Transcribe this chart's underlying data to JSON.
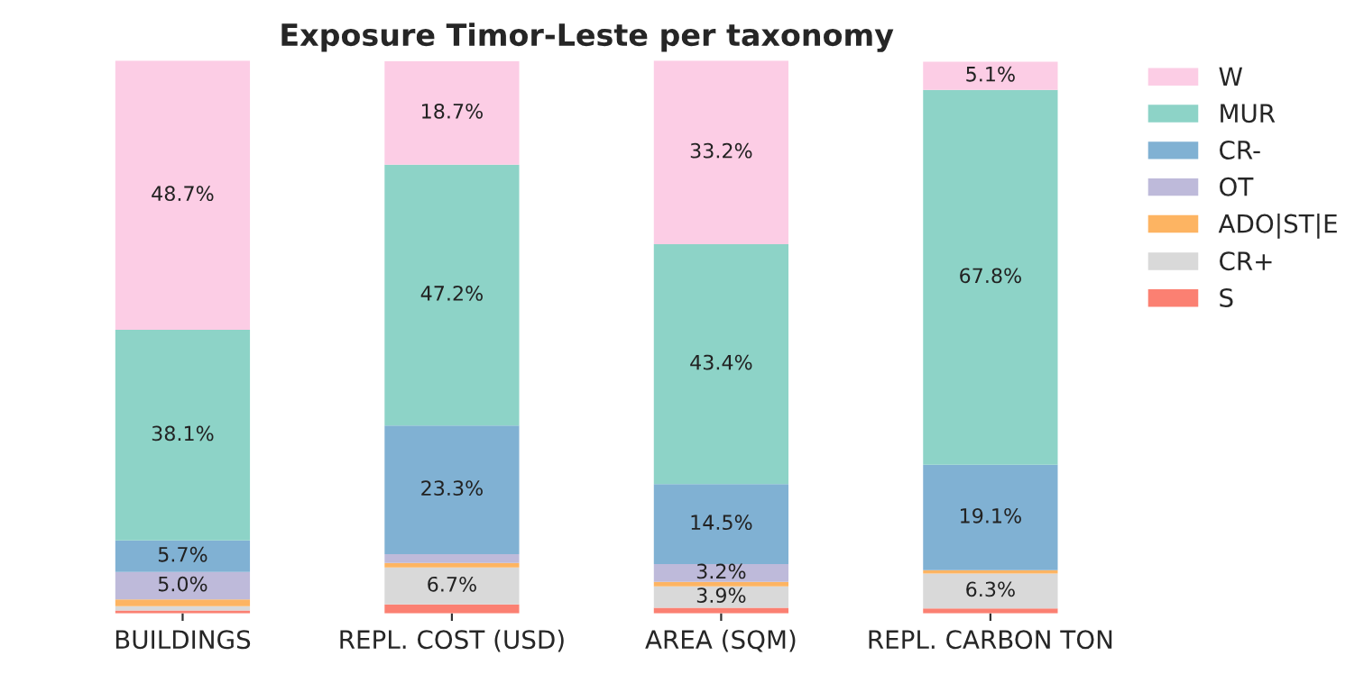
{
  "chart_data": {
    "type": "bar",
    "title": "Exposure Timor-Leste per taxonomy",
    "stacked": true,
    "legend": "top right",
    "categories": [
      "BUILDINGS",
      "REPL. COST (USD)",
      "AREA (SQM)",
      "REPL. CARBON TON"
    ],
    "series": [
      {
        "name": "S",
        "color": "#fb8072",
        "values": [
          0.5,
          1.6,
          1.0,
          0.9
        ],
        "value_labels": [
          null,
          null,
          null,
          null
        ]
      },
      {
        "name": "CR+",
        "color": "#d9d9d9",
        "values": [
          0.8,
          6.7,
          3.9,
          6.3
        ],
        "value_labels": [
          null,
          "6.7%",
          "3.9%",
          "6.3%"
        ]
      },
      {
        "name": "ADO|ST|E",
        "color": "#fdb462",
        "values": [
          1.2,
          0.8,
          0.8,
          0.6
        ],
        "value_labels": [
          null,
          null,
          null,
          null
        ]
      },
      {
        "name": "OT",
        "color": "#bebada",
        "values": [
          5.0,
          1.6,
          3.2,
          null
        ],
        "value_labels": [
          "5.0%",
          null,
          "3.2%",
          null
        ]
      },
      {
        "name": "CR-",
        "color": "#80b1d3",
        "values": [
          5.7,
          23.3,
          14.5,
          19.1
        ],
        "value_labels": [
          "5.7%",
          "23.3%",
          "14.5%",
          "19.1%"
        ]
      },
      {
        "name": "MUR",
        "color": "#8dd3c7",
        "values": [
          38.1,
          47.2,
          43.4,
          67.8
        ],
        "value_labels": [
          "38.1%",
          "47.2%",
          "43.4%",
          "67.8%"
        ]
      },
      {
        "name": "W",
        "color": "#fccde5",
        "values": [
          48.7,
          18.7,
          33.2,
          5.1
        ],
        "value_labels": [
          "48.7%",
          "18.7%",
          "33.2%",
          "5.1%"
        ]
      }
    ]
  }
}
